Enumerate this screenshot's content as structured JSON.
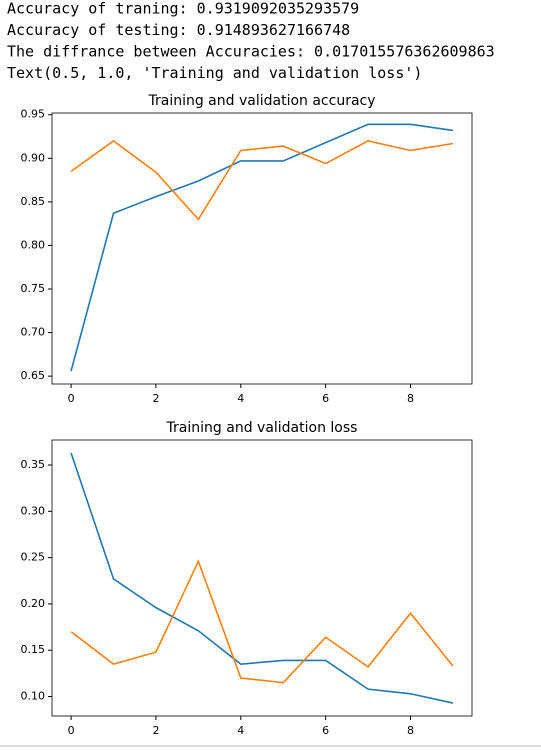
{
  "output_lines": [
    "Accuracy of traning: 0.9319092035293579",
    "Accuracy of testing: 0.914893627166748",
    "The diffrance between Accuracies: 0.017015576362609863",
    "Text(0.5, 1.0, 'Training and validation loss')"
  ],
  "chart_data": [
    {
      "type": "line",
      "title": "Training and validation accuracy",
      "x": [
        0,
        1,
        2,
        3,
        4,
        5,
        6,
        7,
        8,
        9
      ],
      "series": [
        {
          "color": "#1f77b4",
          "values": [
            0.656,
            0.837,
            0.856,
            0.874,
            0.897,
            0.897,
            0.918,
            0.939,
            0.939,
            0.932
          ]
        },
        {
          "color": "#ff7f0e",
          "values": [
            0.885,
            0.92,
            0.884,
            0.83,
            0.909,
            0.914,
            0.894,
            0.92,
            0.909,
            0.917
          ]
        }
      ],
      "xlim": [
        -0.45,
        9.45
      ],
      "xticks": [
        0,
        2,
        4,
        6,
        8
      ],
      "ylim": [
        0.641,
        0.952
      ],
      "yticks": [
        {
          "value": 0.65,
          "label": "0.65"
        },
        {
          "value": 0.7,
          "label": "0.70"
        },
        0.75,
        {
          "value": 0.8,
          "label": "0.80"
        },
        0.85,
        {
          "value": 0.9,
          "label": "0.90"
        },
        0.95
      ]
    },
    {
      "type": "line",
      "title": "Training and validation loss",
      "x": [
        0,
        1,
        2,
        3,
        4,
        5,
        6,
        7,
        8,
        9
      ],
      "series": [
        {
          "color": "#1f77b4",
          "values": [
            0.363,
            0.227,
            0.196,
            0.171,
            0.135,
            0.139,
            0.139,
            0.108,
            0.103,
            0.093
          ]
        },
        {
          "color": "#ff7f0e",
          "values": [
            0.17,
            0.135,
            0.148,
            0.246,
            0.12,
            0.115,
            0.164,
            0.132,
            0.19,
            0.133
          ]
        }
      ],
      "xlim": [
        -0.45,
        9.45
      ],
      "xticks": [
        0,
        2,
        4,
        6,
        8
      ],
      "ylim": [
        0.079,
        0.377
      ],
      "yticks": [
        {
          "value": 0.1,
          "label": "0.10"
        },
        0.15,
        {
          "value": 0.2,
          "label": "0.20"
        },
        0.25,
        {
          "value": 0.3,
          "label": "0.30"
        },
        0.35
      ]
    }
  ]
}
